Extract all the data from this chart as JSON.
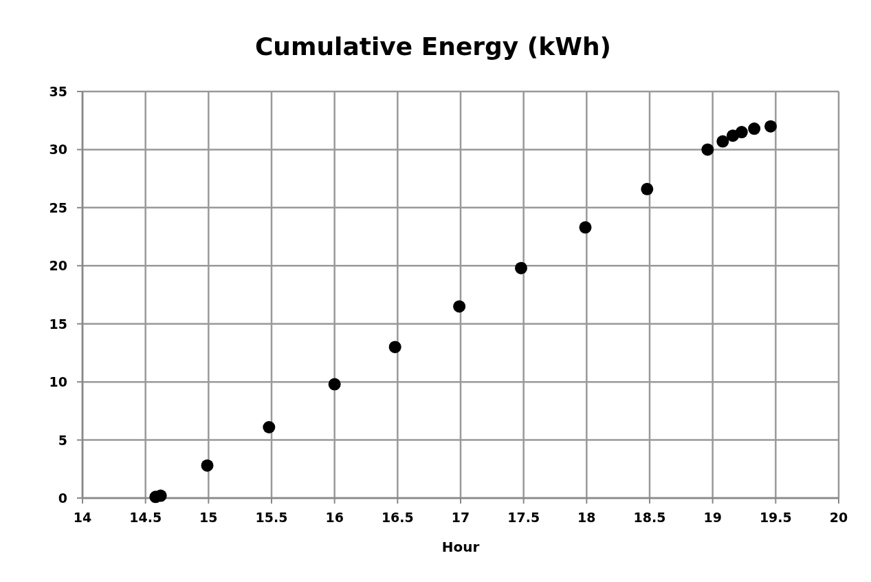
{
  "chart_data": {
    "type": "scatter",
    "title": "Cumulative Energy (kWh)",
    "xlabel": "Hour",
    "x": [
      14.58,
      14.62,
      14.99,
      15.48,
      16.0,
      16.48,
      16.99,
      17.48,
      17.99,
      18.48,
      18.96,
      19.08,
      19.16,
      19.23,
      19.33,
      19.46
    ],
    "series": [
      {
        "color": "#000000",
        "values": [
          0.1,
          0.2,
          2.8,
          6.1,
          9.8,
          13.0,
          16.5,
          19.8,
          23.3,
          26.6,
          30.0,
          30.7,
          31.2,
          31.5,
          31.8,
          32.0
        ]
      }
    ],
    "xlim": [
      14,
      20
    ],
    "xticks": [
      14,
      14.5,
      15,
      15.5,
      16,
      16.5,
      17,
      17.5,
      18,
      18.5,
      19,
      19.5,
      20
    ],
    "ylim": [
      0,
      35
    ],
    "yticks": [
      0,
      5,
      10,
      15,
      20,
      25,
      30,
      35
    ],
    "grid": true,
    "marker": "circle"
  }
}
